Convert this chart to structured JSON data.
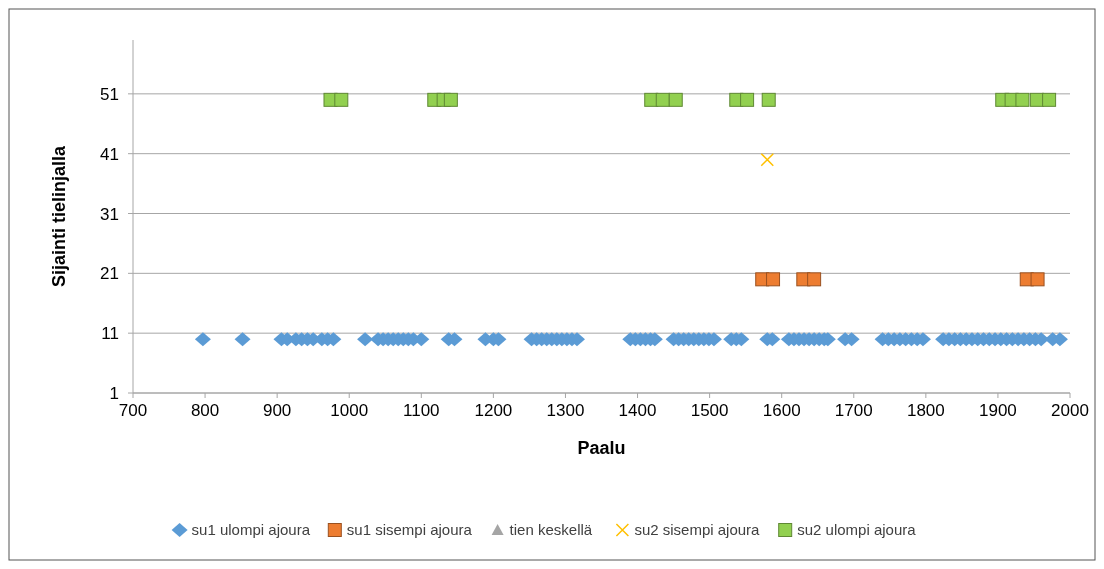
{
  "chart_data": {
    "type": "scatter",
    "xlabel": "Paalu",
    "ylabel": "Sijainti tielinjalla",
    "xlim": [
      700,
      2000
    ],
    "xticks": [
      700,
      800,
      900,
      1000,
      1100,
      1200,
      1300,
      1400,
      1500,
      1600,
      1700,
      1800,
      1900,
      2000
    ],
    "ylim": [
      1,
      60
    ],
    "yticks": [
      1,
      11,
      21,
      31,
      41,
      51
    ],
    "grid": "y",
    "legend": "bottom",
    "series": [
      {
        "name": "su1 ulompi ajoura",
        "color": "#5b9bd5",
        "marker": "diamond",
        "x": [
          797,
          852,
          906,
          914,
          926,
          934,
          942,
          950,
          962,
          970,
          978,
          1022,
          1040,
          1047,
          1054,
          1061,
          1068,
          1075,
          1082,
          1089,
          1100,
          1138,
          1146,
          1189,
          1200,
          1207,
          1253,
          1260,
          1267,
          1274,
          1281,
          1288,
          1295,
          1302,
          1309,
          1316,
          1390,
          1397,
          1404,
          1411,
          1418,
          1424,
          1450,
          1457,
          1464,
          1471,
          1478,
          1485,
          1492,
          1499,
          1506,
          1530,
          1537,
          1544,
          1580,
          1587,
          1610,
          1617,
          1624,
          1631,
          1638,
          1645,
          1652,
          1659,
          1664,
          1688,
          1697,
          1740,
          1748,
          1756,
          1764,
          1772,
          1780,
          1788,
          1796,
          1824,
          1832,
          1840,
          1848,
          1856,
          1864,
          1872,
          1880,
          1888,
          1896,
          1904,
          1912,
          1920,
          1928,
          1936,
          1944,
          1952,
          1960,
          1976,
          1986
        ],
        "values": [
          10,
          10,
          10,
          10,
          10,
          10,
          10,
          10,
          10,
          10,
          10,
          10,
          10,
          10,
          10,
          10,
          10,
          10,
          10,
          10,
          10,
          10,
          10,
          10,
          10,
          10,
          10,
          10,
          10,
          10,
          10,
          10,
          10,
          10,
          10,
          10,
          10,
          10,
          10,
          10,
          10,
          10,
          10,
          10,
          10,
          10,
          10,
          10,
          10,
          10,
          10,
          10,
          10,
          10,
          10,
          10,
          10,
          10,
          10,
          10,
          10,
          10,
          10,
          10,
          10,
          10,
          10,
          10,
          10,
          10,
          10,
          10,
          10,
          10,
          10,
          10,
          10,
          10,
          10,
          10,
          10,
          10,
          10,
          10,
          10,
          10,
          10,
          10,
          10,
          10,
          10,
          10,
          10,
          10,
          10
        ]
      },
      {
        "name": "su1 sisempi ajoura",
        "color": "#ed7d31",
        "marker": "square",
        "x": [
          1573,
          1588,
          1630,
          1645,
          1940,
          1955
        ],
        "values": [
          20,
          20,
          20,
          20,
          20,
          20
        ]
      },
      {
        "name": "tien keskellä",
        "color": "#a5a5a5",
        "marker": "triangle"
      },
      {
        "name": "su2 sisempi ajoura",
        "color": "#ffc000",
        "marker": "cross",
        "x": [
          1580
        ],
        "values": [
          40
        ]
      },
      {
        "name": "su2 ulompi ajoura",
        "color": "#92d050",
        "marker": "square",
        "x": [
          974,
          989,
          1118,
          1131,
          1141,
          1419,
          1435,
          1453,
          1537,
          1552,
          1582,
          1906,
          1919,
          1934,
          1954,
          1971
        ],
        "values": [
          50,
          50,
          50,
          50,
          50,
          50,
          50,
          50,
          50,
          50,
          50,
          50,
          50,
          50,
          50,
          50
        ]
      }
    ]
  }
}
